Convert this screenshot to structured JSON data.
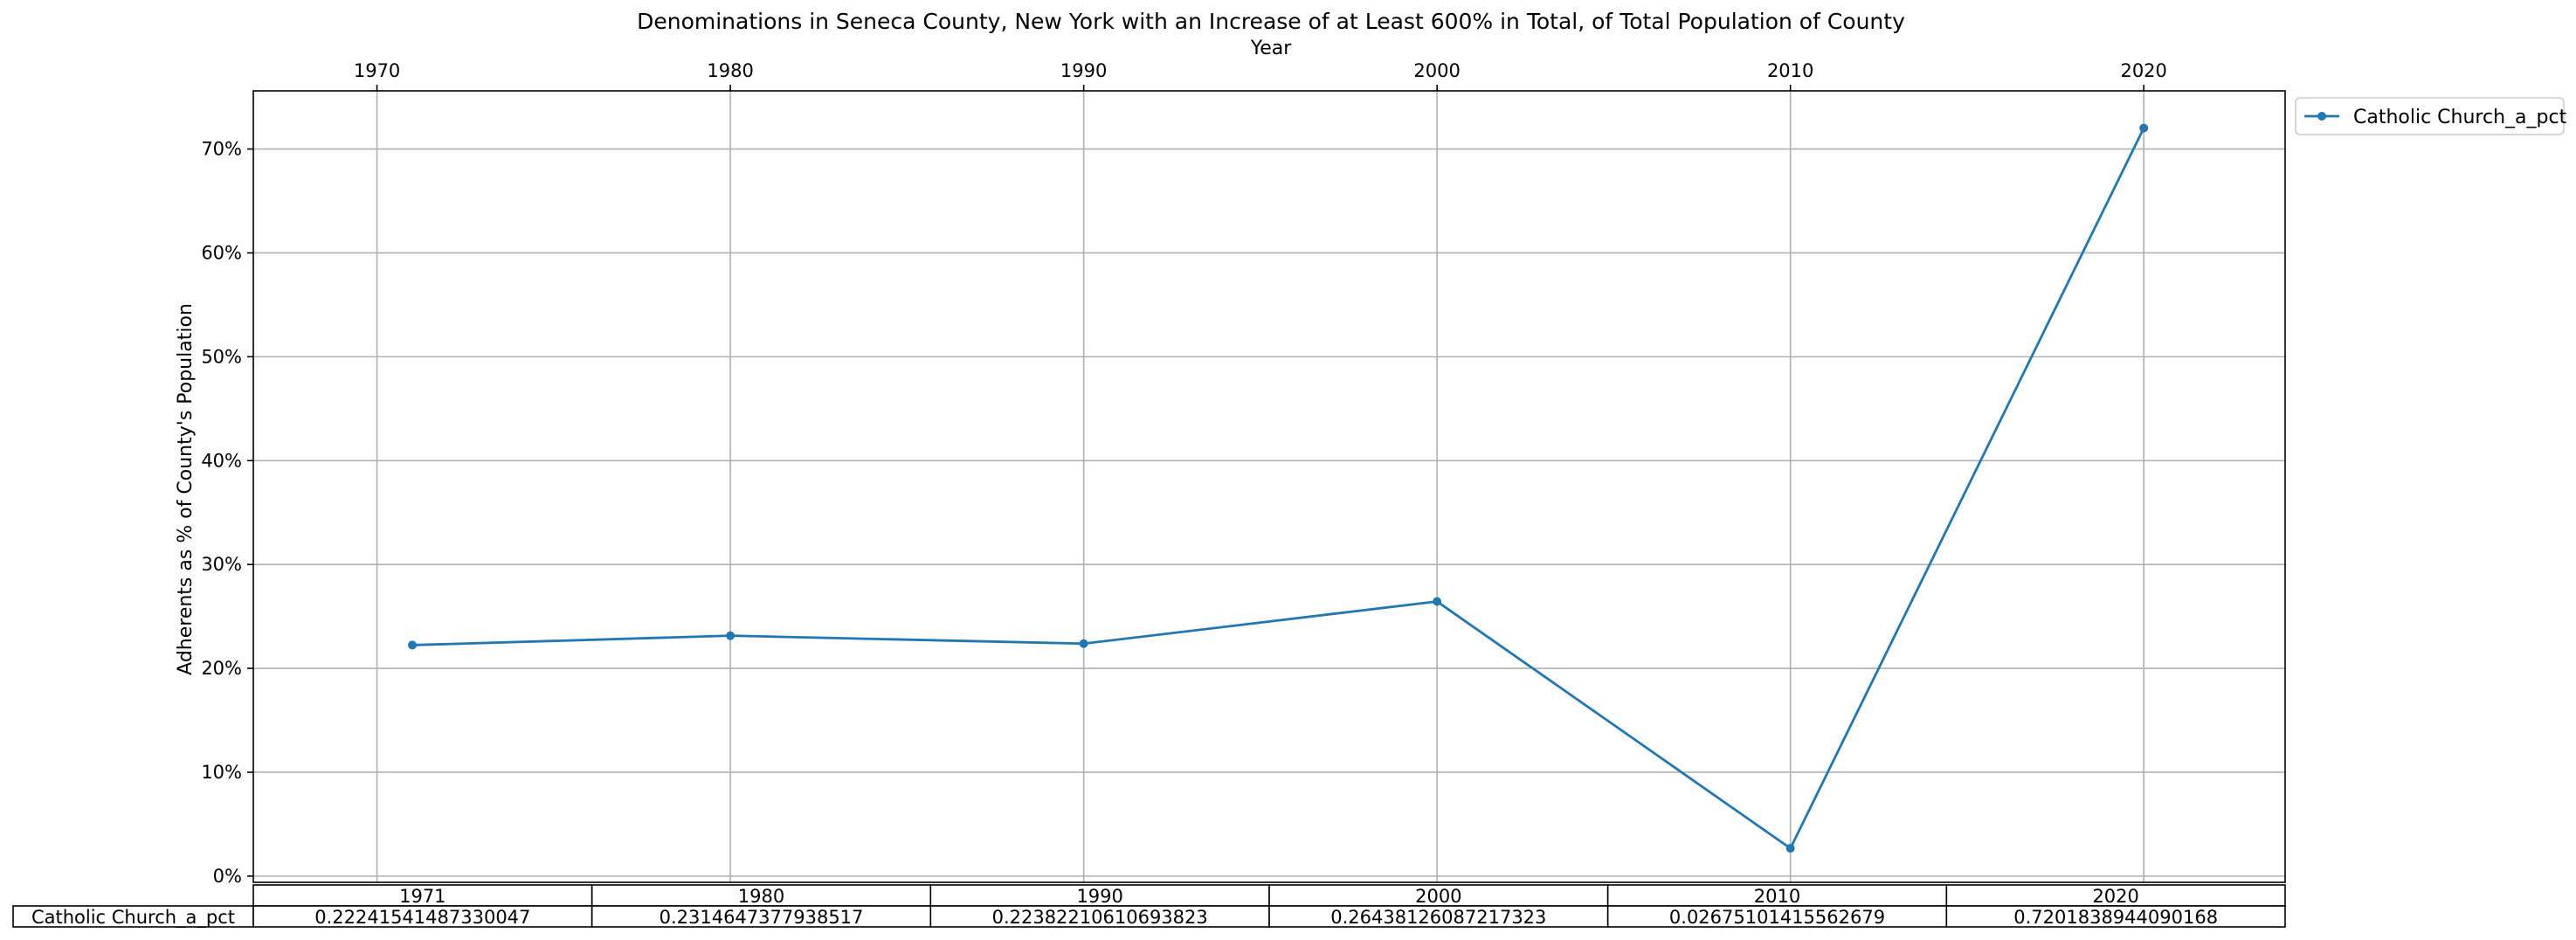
{
  "chart_data": {
    "type": "line",
    "title": "Denominations in Seneca County, New York with an Increase of at Least 600% in Total, of Total Population of County",
    "xlabel": "Year",
    "ylabel": "Adherents as % of County's Population",
    "x_axis_position": "top",
    "xlim": [
      1966.5,
      2024.0
    ],
    "ylim": [
      -0.006,
      0.756
    ],
    "x_ticks": [
      1970,
      1980,
      1990,
      2000,
      2010,
      2020
    ],
    "x_tick_labels": [
      "1970",
      "1980",
      "1990",
      "2000",
      "2010",
      "2020"
    ],
    "y_ticks": [
      0.0,
      0.1,
      0.2,
      0.3,
      0.4,
      0.5,
      0.6,
      0.7
    ],
    "y_tick_labels": [
      "0%",
      "10%",
      "20%",
      "30%",
      "40%",
      "50%",
      "60%",
      "70%"
    ],
    "grid": true,
    "legend_position": "outside-top-right",
    "series": [
      {
        "name": "Catholic Church_a_pct",
        "color": "#1f77b4",
        "x": [
          1971,
          1980,
          1990,
          2000,
          2010,
          2020
        ],
        "y": [
          0.22241541487330047,
          0.2314647377938517,
          0.22382210610693823,
          0.26438126087217323,
          0.02675101415562679,
          0.7201838944090168
        ]
      }
    ],
    "table": {
      "columns": [
        "1971",
        "1980",
        "1990",
        "2000",
        "2010",
        "2020"
      ],
      "rows": [
        {
          "label": "Catholic Church_a_pct",
          "cells": [
            "0.22241541487330047",
            "0.2314647377938517",
            "0.22382210610693823",
            "0.26438126087217323",
            "0.02675101415562679",
            "0.7201838944090168"
          ]
        }
      ]
    }
  }
}
